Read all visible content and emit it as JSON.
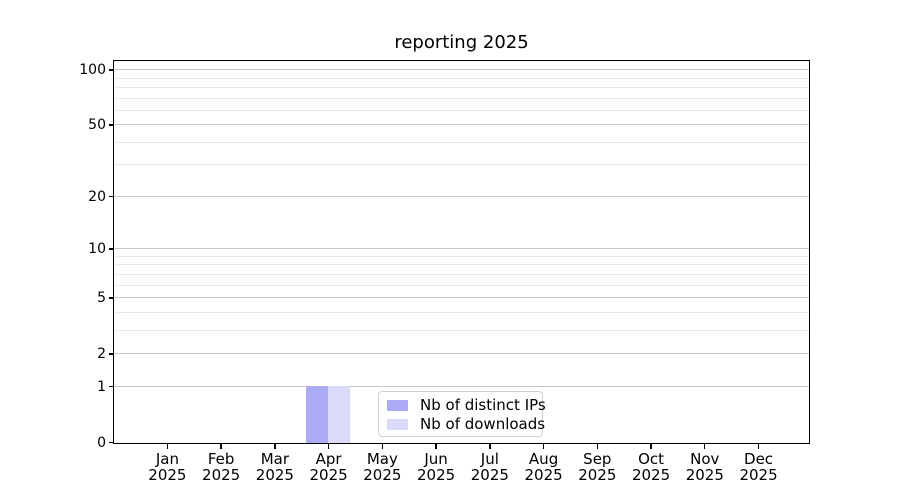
{
  "chart_data": {
    "type": "bar",
    "title": "reporting 2025",
    "categories": [
      "Jan 2025",
      "Feb 2025",
      "Mar 2025",
      "Apr 2025",
      "May 2025",
      "Jun 2025",
      "Jul 2025",
      "Aug 2025",
      "Sep 2025",
      "Oct 2025",
      "Nov 2025",
      "Dec 2025"
    ],
    "series": [
      {
        "name": "Nb of distinct IPs",
        "color": "#aaaaf5",
        "values": [
          0,
          0,
          0,
          1,
          0,
          0,
          0,
          0,
          0,
          0,
          0,
          0
        ]
      },
      {
        "name": "Nb of downloads",
        "color": "#dbdbfa",
        "values": [
          0,
          0,
          0,
          1,
          0,
          0,
          0,
          0,
          0,
          0,
          0,
          0
        ]
      }
    ],
    "xlabel": "",
    "ylabel": "",
    "yscale": "log1p",
    "ylim": [
      0,
      114
    ],
    "y_major_ticks": [
      100,
      50,
      20,
      10,
      5,
      2,
      1,
      0
    ],
    "y_minor_gridlines": [
      90,
      80,
      70,
      60,
      40,
      30,
      9,
      8,
      7,
      6,
      4,
      3
    ],
    "grid": true,
    "legend_position": "lower center"
  },
  "colors": {
    "major_grid": "#c9c9c9",
    "minor_grid": "#e9e9e9",
    "spine": "#000000",
    "legend_border": "#d0d0d0"
  }
}
